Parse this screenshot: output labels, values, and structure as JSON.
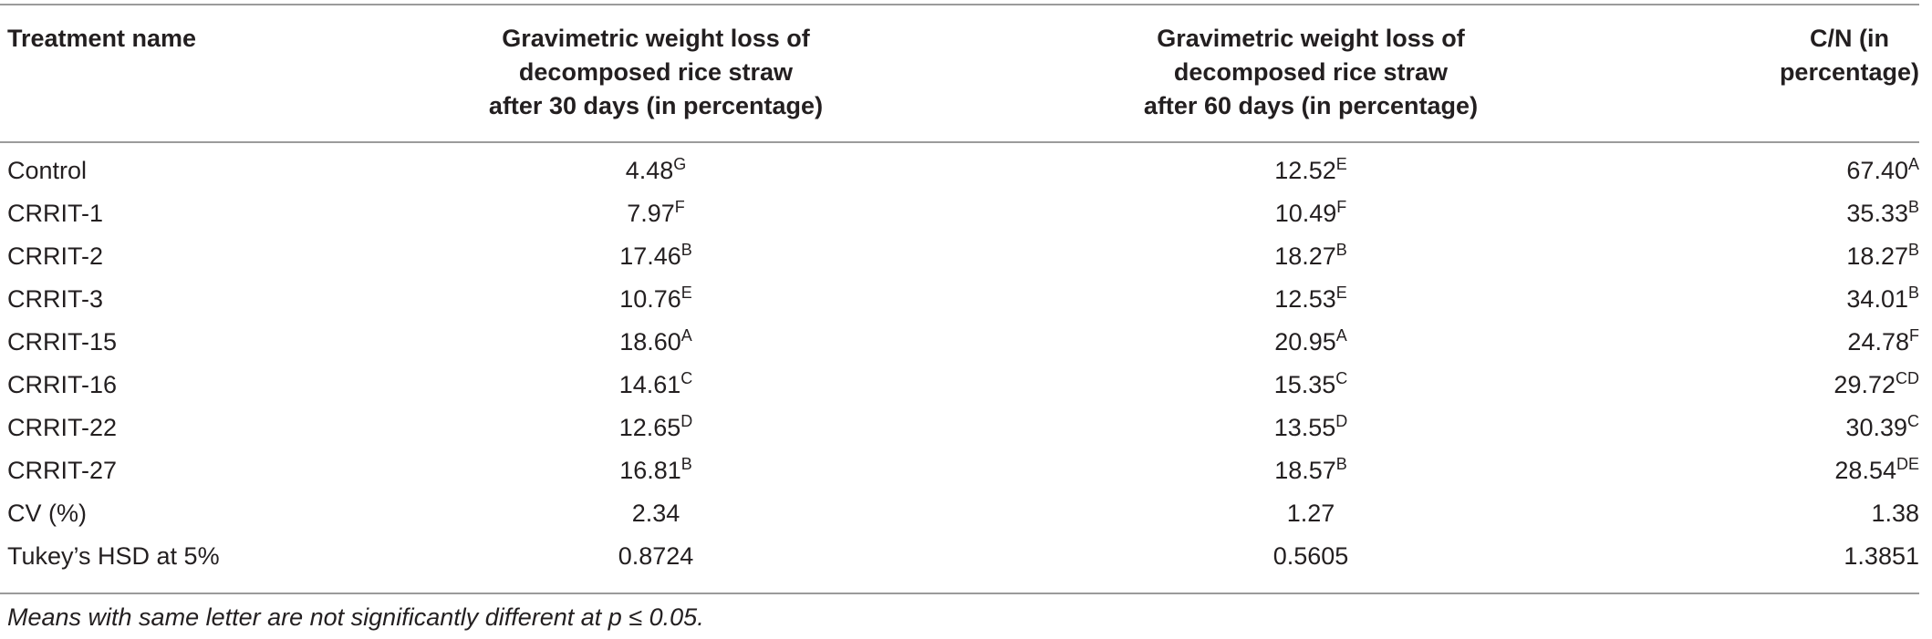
{
  "table": {
    "headers": [
      [
        "Treatment name"
      ],
      [
        "Gravimetric weight loss of",
        "decomposed rice straw",
        "after 30 days (in percentage)"
      ],
      [
        "Gravimetric weight loss of",
        "decomposed rice straw",
        "after 60 days (in percentage)"
      ],
      [
        "C/N (in",
        "percentage)"
      ]
    ],
    "rows": [
      {
        "name": "Control",
        "d30": "4.48",
        "d30_sup": "G",
        "d60": "12.52",
        "d60_sup": "E",
        "cn": "67.40",
        "cn_sup": "A"
      },
      {
        "name": "CRRIT-1",
        "d30": "7.97",
        "d30_sup": "F",
        "d60": "10.49",
        "d60_sup": "F",
        "cn": "35.33",
        "cn_sup": "B"
      },
      {
        "name": "CRRIT-2",
        "d30": "17.46",
        "d30_sup": "B",
        "d60": "18.27",
        "d60_sup": "B",
        "cn": "18.27",
        "cn_sup": "B"
      },
      {
        "name": "CRRIT-3",
        "d30": "10.76",
        "d30_sup": "E",
        "d60": "12.53",
        "d60_sup": "E",
        "cn": "34.01",
        "cn_sup": "B"
      },
      {
        "name": "CRRIT-15",
        "d30": "18.60",
        "d30_sup": "A",
        "d60": "20.95",
        "d60_sup": "A",
        "cn": "24.78",
        "cn_sup": "F"
      },
      {
        "name": "CRRIT-16",
        "d30": "14.61",
        "d30_sup": "C",
        "d60": "15.35",
        "d60_sup": "C",
        "cn": "29.72",
        "cn_sup": "CD"
      },
      {
        "name": "CRRIT-22",
        "d30": "12.65",
        "d30_sup": "D",
        "d60": "13.55",
        "d60_sup": "D",
        "cn": "30.39",
        "cn_sup": "C"
      },
      {
        "name": "CRRIT-27",
        "d30": "16.81",
        "d30_sup": "B",
        "d60": "18.57",
        "d60_sup": "B",
        "cn": "28.54",
        "cn_sup": "DE"
      },
      {
        "name": "CV (%)",
        "d30": "2.34",
        "d30_sup": "",
        "d60": "1.27",
        "d60_sup": "",
        "cn": "1.38",
        "cn_sup": ""
      },
      {
        "name": "Tukey’s HSD at 5%",
        "d30": "0.8724",
        "d30_sup": "",
        "d60": "0.5605",
        "d60_sup": "",
        "cn": "1.3851",
        "cn_sup": ""
      }
    ]
  },
  "footnote": "Means with same letter are not significantly different at p ≤ 0.05."
}
